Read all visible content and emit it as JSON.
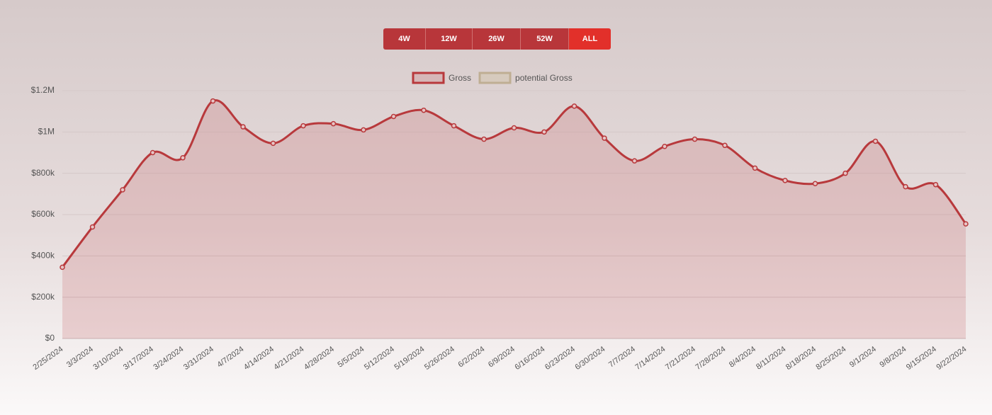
{
  "chart_data": {
    "type": "line",
    "buttons": [
      "4W",
      "12W",
      "26W",
      "52W",
      "ALL"
    ],
    "active_button": 4,
    "categories": [
      "2/25/2024",
      "3/3/2024",
      "3/10/2024",
      "3/17/2024",
      "3/24/2024",
      "3/31/2024",
      "4/7/2024",
      "4/14/2024",
      "4/21/2024",
      "4/28/2024",
      "5/5/2024",
      "5/12/2024",
      "5/19/2024",
      "5/26/2024",
      "6/2/2024",
      "6/9/2024",
      "6/16/2024",
      "6/23/2024",
      "6/30/2024",
      "7/7/2024",
      "7/14/2024",
      "7/21/2024",
      "7/28/2024",
      "8/4/2024",
      "8/11/2024",
      "8/18/2024",
      "8/25/2024",
      "9/1/2024",
      "9/8/2024",
      "9/15/2024",
      "9/22/2024"
    ],
    "series": [
      {
        "name": "Gross",
        "color": "#b8393c",
        "fill": "rgba(196,96,100,0.22)",
        "values": [
          345000,
          540000,
          720000,
          900000,
          875000,
          1150000,
          1025000,
          945000,
          1030000,
          1040000,
          1010000,
          1075000,
          1105000,
          1030000,
          965000,
          1020000,
          1000000,
          1125000,
          970000,
          860000,
          930000,
          965000,
          935000,
          825000,
          765000,
          750000,
          800000,
          955000,
          735000,
          745000,
          555000
        ]
      },
      {
        "name": "potential Gross",
        "color": "#bfae93",
        "fill": "rgba(210,195,170,0.5)",
        "values": [
          null,
          null,
          null,
          null,
          null,
          null,
          null,
          null,
          null,
          null,
          null,
          null,
          null,
          null,
          null,
          null,
          null,
          null,
          null,
          null,
          null,
          null,
          null,
          null,
          null,
          null,
          null,
          null,
          null,
          null,
          null
        ]
      }
    ],
    "ylim": [
      0,
      1200000
    ],
    "yticks": [
      {
        "value": 0,
        "label": "$0"
      },
      {
        "value": 200000,
        "label": "$200k"
      },
      {
        "value": 400000,
        "label": "$400k"
      },
      {
        "value": 600000,
        "label": "$600k"
      },
      {
        "value": 800000,
        "label": "$800k"
      },
      {
        "value": 1000000,
        "label": "$1M"
      },
      {
        "value": 1200000,
        "label": "$1.2M"
      }
    ],
    "grid": true,
    "legend": "top"
  }
}
